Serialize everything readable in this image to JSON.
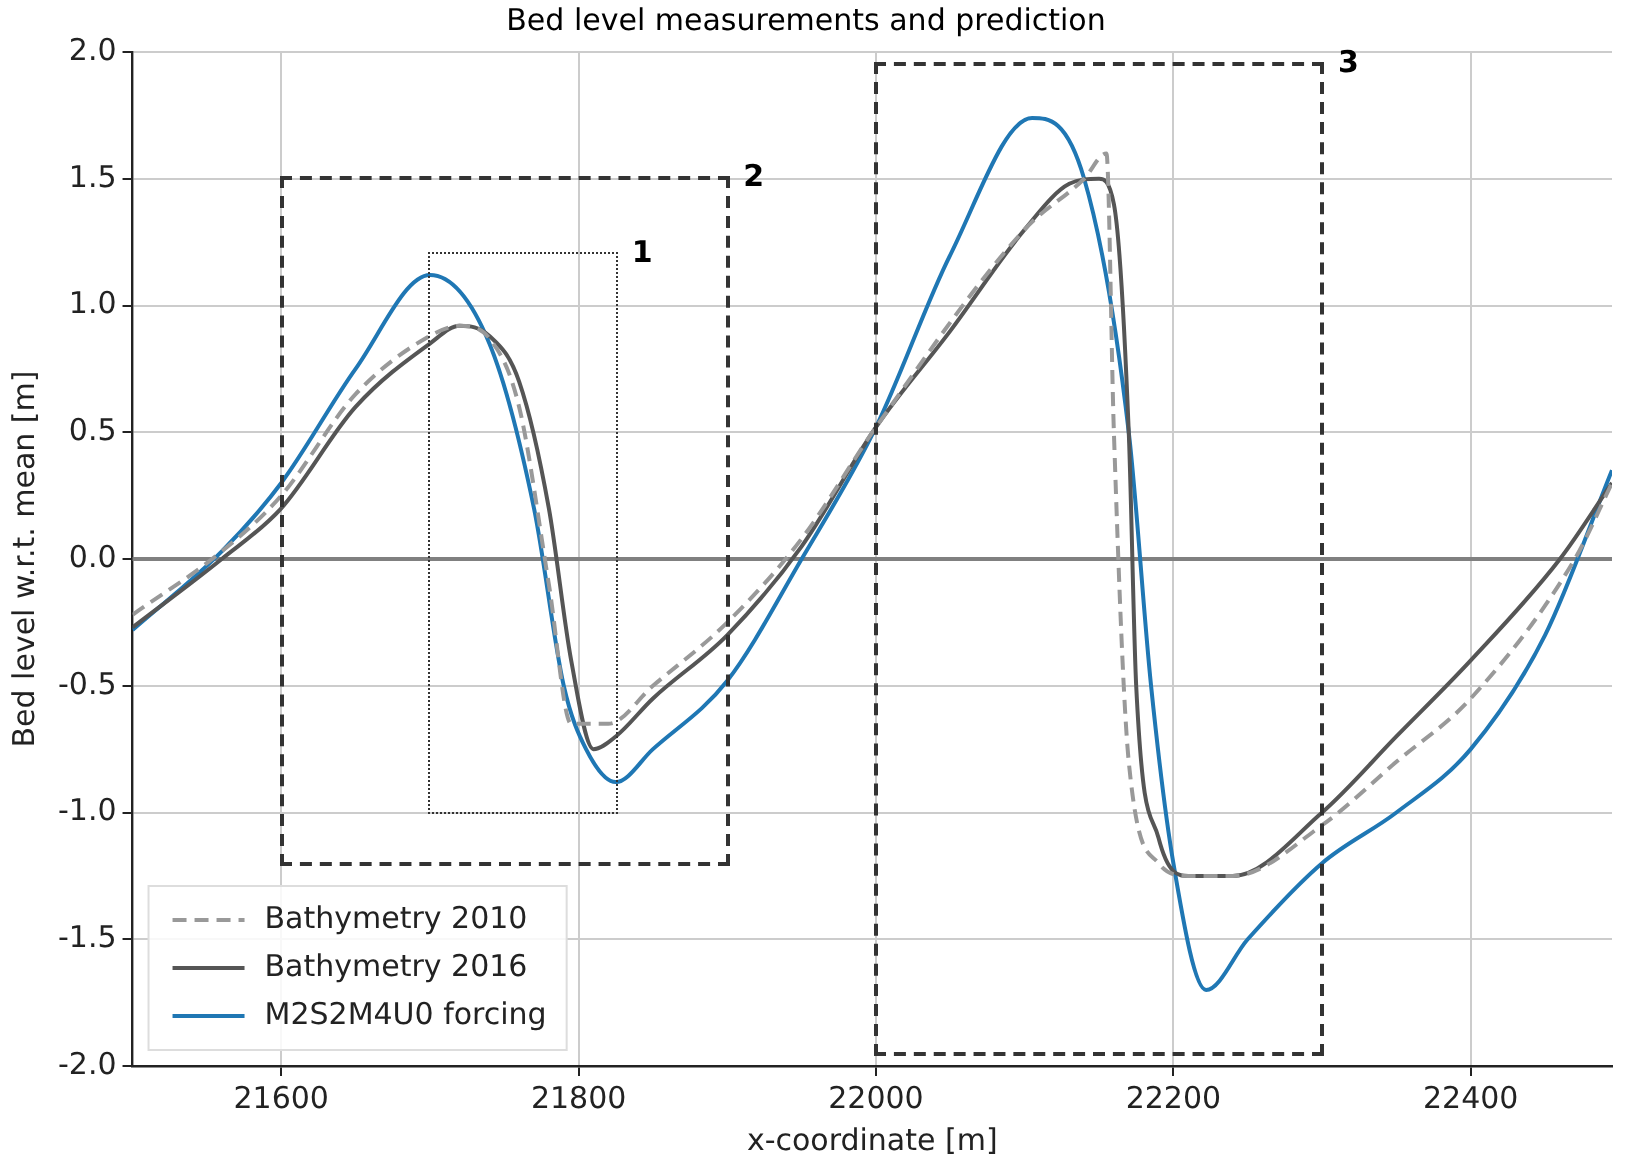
{
  "chart_data": {
    "type": "line",
    "title": "Bed level measurements and prediction",
    "xlabel": "x-coordinate [m]",
    "ylabel": "Bed level w.r.t. mean [m]",
    "xlim": [
      21500,
      22495
    ],
    "xticks": [
      21600,
      21800,
      22000,
      22200,
      22400
    ],
    "ylim": [
      -2,
      2
    ],
    "yticks": [
      {
        "value": -2,
        "label": "-2.0"
      },
      {
        "value": -1.5,
        "label": "-1.5"
      },
      {
        "value": -1,
        "label": "-1.0"
      },
      {
        "value": -0.5,
        "label": "-0.5"
      },
      {
        "value": 0,
        "label": "0.0"
      },
      {
        "value": 0.5,
        "label": "0.5"
      },
      {
        "value": 1,
        "label": "1.0"
      },
      {
        "value": 1.5,
        "label": "1.5"
      },
      {
        "value": 2,
        "label": "2.0"
      }
    ],
    "grid": true,
    "legend": "bottom left",
    "marker": "none",
    "ref_lines": [
      {
        "axis": "y",
        "value": 0,
        "color": "#808080"
      }
    ],
    "annotations": [
      "1",
      "2",
      "3"
    ],
    "series": [
      {
        "name": "Bathymetry 2010",
        "color": "#999999",
        "line_style": "dashed",
        "x": [
          21500,
          21560,
          21600,
          21650,
          21700,
          21720,
          21740,
          21760,
          21780,
          21795,
          21820,
          21850,
          21900,
          21950,
          22000,
          22100,
          22140,
          22155,
          22160,
          22170,
          22190,
          22210,
          22240,
          22300,
          22350,
          22400,
          22470,
          22495
        ],
        "values": [
          -0.22,
          0.03,
          0.25,
          0.65,
          0.88,
          0.92,
          0.87,
          0.6,
          -0.1,
          -0.65,
          -0.65,
          -0.5,
          -0.25,
          0.08,
          0.52,
          1.3,
          1.5,
          1.6,
          0.5,
          -0.8,
          -1.2,
          -1.25,
          -1.25,
          -1.05,
          -0.8,
          -0.55,
          0.0,
          0.3
        ]
      },
      {
        "name": "Bathymetry 2016",
        "color": "#555555",
        "line_style": "solid",
        "x": [
          21500,
          21560,
          21600,
          21650,
          21700,
          21720,
          21740,
          21760,
          21780,
          21795,
          21810,
          21825,
          21850,
          21900,
          21950,
          22000,
          22050,
          22100,
          22130,
          22150,
          22160,
          22170,
          22175,
          22190,
          22210,
          22240,
          22300,
          22350,
          22400,
          22460,
          22495
        ],
        "values": [
          -0.27,
          0.0,
          0.2,
          0.6,
          0.85,
          0.92,
          0.88,
          0.7,
          0.2,
          -0.4,
          -0.75,
          -0.7,
          -0.55,
          -0.3,
          0.05,
          0.52,
          0.9,
          1.3,
          1.48,
          1.5,
          1.4,
          0.5,
          -0.5,
          -1.1,
          -1.25,
          -1.25,
          -1.0,
          -0.7,
          -0.4,
          0.0,
          0.3
        ]
      },
      {
        "name": "M2S2M4U0 forcing",
        "color": "#1f77b4",
        "line_style": "solid",
        "x": [
          21500,
          21560,
          21600,
          21650,
          21700,
          21740,
          21770,
          21790,
          21805,
          21825,
          21850,
          21900,
          21950,
          22000,
          22050,
          22105,
          22140,
          22170,
          22185,
          22200,
          22222,
          22250,
          22300,
          22350,
          22400,
          22450,
          22495
        ],
        "values": [
          -0.28,
          0.03,
          0.3,
          0.75,
          1.12,
          0.85,
          0.2,
          -0.5,
          -0.75,
          -0.88,
          -0.75,
          -0.48,
          0.0,
          0.52,
          1.2,
          1.74,
          1.5,
          0.5,
          -0.5,
          -1.2,
          -1.7,
          -1.5,
          -1.2,
          -1.0,
          -0.75,
          -0.3,
          0.35
        ]
      }
    ]
  }
}
